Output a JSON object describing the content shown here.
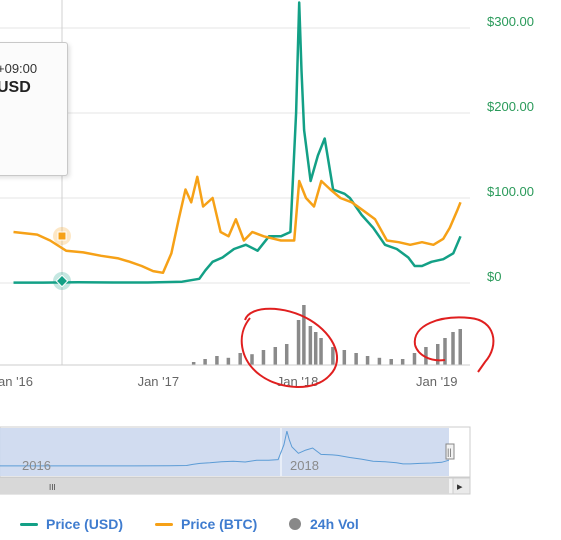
{
  "tooltip": {
    "timezone_text": "+09:00",
    "currency_text": "USD"
  },
  "colors": {
    "usd": "#13a086",
    "btc": "#f6a117",
    "vol": "#8a8a8a",
    "axis_label": "#2a9a5a",
    "annotation": "#e01f1f",
    "navigator_fill": "#ccd8ee",
    "navigator_line": "#5b9bd5"
  },
  "legend": [
    {
      "label": "Price (USD)",
      "marker": "line",
      "color": "#13a086"
    },
    {
      "label": "Price (BTC)",
      "marker": "line",
      "color": "#f6a117"
    },
    {
      "label": "24h Vol",
      "marker": "dot",
      "color": "#888888"
    }
  ],
  "navigator": {
    "labels": [
      "2016",
      "2018"
    ],
    "scroll_grip": "III",
    "handle_grip": "||",
    "arrow_right": "▸"
  },
  "chart_data": {
    "type": "line",
    "title": "",
    "x_axis": {
      "type": "date",
      "tick_labels": [
        "an '16",
        "Jan '17",
        "Jan '18",
        "Jan '19"
      ],
      "tick_dates": [
        "2016-01-01",
        "2017-01-01",
        "2018-01-01",
        "2019-01-01"
      ]
    },
    "y_axis": {
      "label": "",
      "tick_labels": [
        "$0",
        "$100.00",
        "$200.00",
        "$300.00"
      ],
      "ticks": [
        0,
        100,
        200,
        300
      ],
      "range": [
        0,
        300
      ],
      "position": "right"
    },
    "grid": true,
    "legend_position": "bottom",
    "series": [
      {
        "name": "Price (USD)",
        "points": [
          [
            "2015-12-15",
            0.5
          ],
          [
            "2016-03-01",
            0.5
          ],
          [
            "2016-06-01",
            0.8
          ],
          [
            "2016-09-01",
            0.6
          ],
          [
            "2016-12-01",
            0.6
          ],
          [
            "2017-03-01",
            1.5
          ],
          [
            "2017-04-15",
            5
          ],
          [
            "2017-05-01",
            15
          ],
          [
            "2017-05-20",
            25
          ],
          [
            "2017-06-15",
            30
          ],
          [
            "2017-07-15",
            40
          ],
          [
            "2017-08-15",
            45
          ],
          [
            "2017-09-15",
            38
          ],
          [
            "2017-10-15",
            55
          ],
          [
            "2017-11-15",
            55
          ],
          [
            "2017-12-10",
            60
          ],
          [
            "2017-12-25",
            200
          ],
          [
            "2018-01-02",
            330
          ],
          [
            "2018-01-08",
            250
          ],
          [
            "2018-01-15",
            180
          ],
          [
            "2018-02-01",
            120
          ],
          [
            "2018-02-20",
            150
          ],
          [
            "2018-03-10",
            170
          ],
          [
            "2018-04-01",
            110
          ],
          [
            "2018-05-01",
            105
          ],
          [
            "2018-05-15",
            100
          ],
          [
            "2018-06-15",
            80
          ],
          [
            "2018-07-15",
            65
          ],
          [
            "2018-08-15",
            45
          ],
          [
            "2018-09-15",
            40
          ],
          [
            "2018-10-15",
            30
          ],
          [
            "2018-11-01",
            20
          ],
          [
            "2018-11-20",
            20
          ],
          [
            "2018-12-15",
            25
          ],
          [
            "2019-01-15",
            28
          ],
          [
            "2019-02-10",
            35
          ],
          [
            "2019-03-01",
            55
          ]
        ]
      },
      {
        "name": "Price (BTC)",
        "points": [
          [
            "2015-12-15",
            60
          ],
          [
            "2016-02-15",
            57
          ],
          [
            "2016-03-20",
            50
          ],
          [
            "2016-05-01",
            38
          ],
          [
            "2016-06-15",
            36
          ],
          [
            "2016-08-01",
            32
          ],
          [
            "2016-09-15",
            29
          ],
          [
            "2016-10-15",
            25
          ],
          [
            "2016-11-15",
            20
          ],
          [
            "2016-12-15",
            14
          ],
          [
            "2017-01-10",
            12
          ],
          [
            "2017-02-01",
            35
          ],
          [
            "2017-02-20",
            75
          ],
          [
            "2017-03-10",
            110
          ],
          [
            "2017-03-25",
            95
          ],
          [
            "2017-04-10",
            125
          ],
          [
            "2017-04-25",
            90
          ],
          [
            "2017-05-20",
            100
          ],
          [
            "2017-06-10",
            60
          ],
          [
            "2017-07-01",
            55
          ],
          [
            "2017-07-20",
            75
          ],
          [
            "2017-08-10",
            50
          ],
          [
            "2017-09-01",
            60
          ],
          [
            "2017-10-01",
            55
          ],
          [
            "2017-11-15",
            50
          ],
          [
            "2017-12-20",
            50
          ],
          [
            "2018-01-02",
            120
          ],
          [
            "2018-01-20",
            100
          ],
          [
            "2018-02-10",
            90
          ],
          [
            "2018-03-01",
            120
          ],
          [
            "2018-03-25",
            110
          ],
          [
            "2018-04-20",
            100
          ],
          [
            "2018-05-20",
            95
          ],
          [
            "2018-06-20",
            85
          ],
          [
            "2018-07-20",
            75
          ],
          [
            "2018-08-20",
            50
          ],
          [
            "2018-09-20",
            48
          ],
          [
            "2018-10-20",
            45
          ],
          [
            "2018-11-20",
            48
          ],
          [
            "2018-12-20",
            45
          ],
          [
            "2019-01-15",
            52
          ],
          [
            "2019-02-01",
            65
          ],
          [
            "2019-02-20",
            85
          ],
          [
            "2019-03-01",
            95
          ]
        ]
      },
      {
        "name": "24h Vol",
        "type": "bar",
        "points": [
          [
            "2017-04-01",
            0.05
          ],
          [
            "2017-05-01",
            0.1
          ],
          [
            "2017-06-01",
            0.15
          ],
          [
            "2017-07-01",
            0.12
          ],
          [
            "2017-08-01",
            0.2
          ],
          [
            "2017-09-01",
            0.18
          ],
          [
            "2017-10-01",
            0.25
          ],
          [
            "2017-11-01",
            0.3
          ],
          [
            "2017-12-01",
            0.35
          ],
          [
            "2018-01-01",
            0.75
          ],
          [
            "2018-01-15",
            1.0
          ],
          [
            "2018-02-01",
            0.65
          ],
          [
            "2018-02-15",
            0.55
          ],
          [
            "2018-03-01",
            0.45
          ],
          [
            "2018-04-01",
            0.3
          ],
          [
            "2018-05-01",
            0.25
          ],
          [
            "2018-06-01",
            0.2
          ],
          [
            "2018-07-01",
            0.15
          ],
          [
            "2018-08-01",
            0.12
          ],
          [
            "2018-09-01",
            0.1
          ],
          [
            "2018-10-01",
            0.1
          ],
          [
            "2018-11-01",
            0.2
          ],
          [
            "2018-12-01",
            0.3
          ],
          [
            "2019-01-01",
            0.35
          ],
          [
            "2019-01-20",
            0.45
          ],
          [
            "2019-02-10",
            0.55
          ],
          [
            "2019-03-01",
            0.6
          ]
        ]
      }
    ]
  }
}
